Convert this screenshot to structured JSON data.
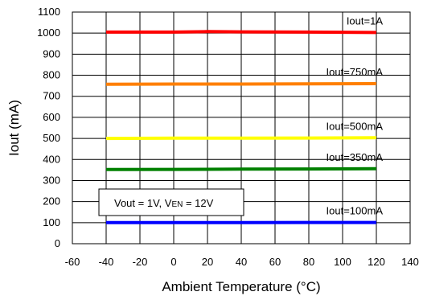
{
  "chart_data": {
    "type": "line",
    "xlabel": "Ambient Temperature (°C)",
    "ylabel": "Iout (mA)",
    "xlim": [
      -60,
      140
    ],
    "ylim": [
      0,
      1100
    ],
    "xticks": [
      -60,
      -40,
      -20,
      0,
      20,
      40,
      60,
      80,
      100,
      120,
      140
    ],
    "yticks": [
      0,
      100,
      200,
      300,
      400,
      500,
      600,
      700,
      800,
      900,
      1000,
      1100
    ],
    "grid": true,
    "series": [
      {
        "name": "Iout=1A",
        "color": "#ff0000",
        "x": [
          -40,
          0,
          20,
          40,
          80,
          120
        ],
        "y": [
          1005,
          1005,
          1007,
          1006,
          1005,
          1003
        ]
      },
      {
        "name": "Iout=750mA",
        "color": "#ff7f00",
        "x": [
          -40,
          0,
          40,
          80,
          120
        ],
        "y": [
          757,
          758,
          758,
          759,
          760
        ]
      },
      {
        "name": "Iout=500mA",
        "color": "#ffff00",
        "x": [
          -40,
          0,
          40,
          80,
          120
        ],
        "y": [
          500,
          501,
          501,
          502,
          503
        ]
      },
      {
        "name": "Iout=350mA",
        "color": "#008000",
        "x": [
          -40,
          0,
          40,
          80,
          120
        ],
        "y": [
          352,
          353,
          354,
          355,
          356
        ]
      },
      {
        "name": "Iout=100mA",
        "color": "#0000ff",
        "x": [
          -40,
          0,
          40,
          80,
          120
        ],
        "y": [
          100,
          100,
          100,
          101,
          101
        ]
      }
    ],
    "annotation": {
      "main": "Vout = 1V, V",
      "sub": "EN",
      "tail": " = 12V"
    }
  }
}
